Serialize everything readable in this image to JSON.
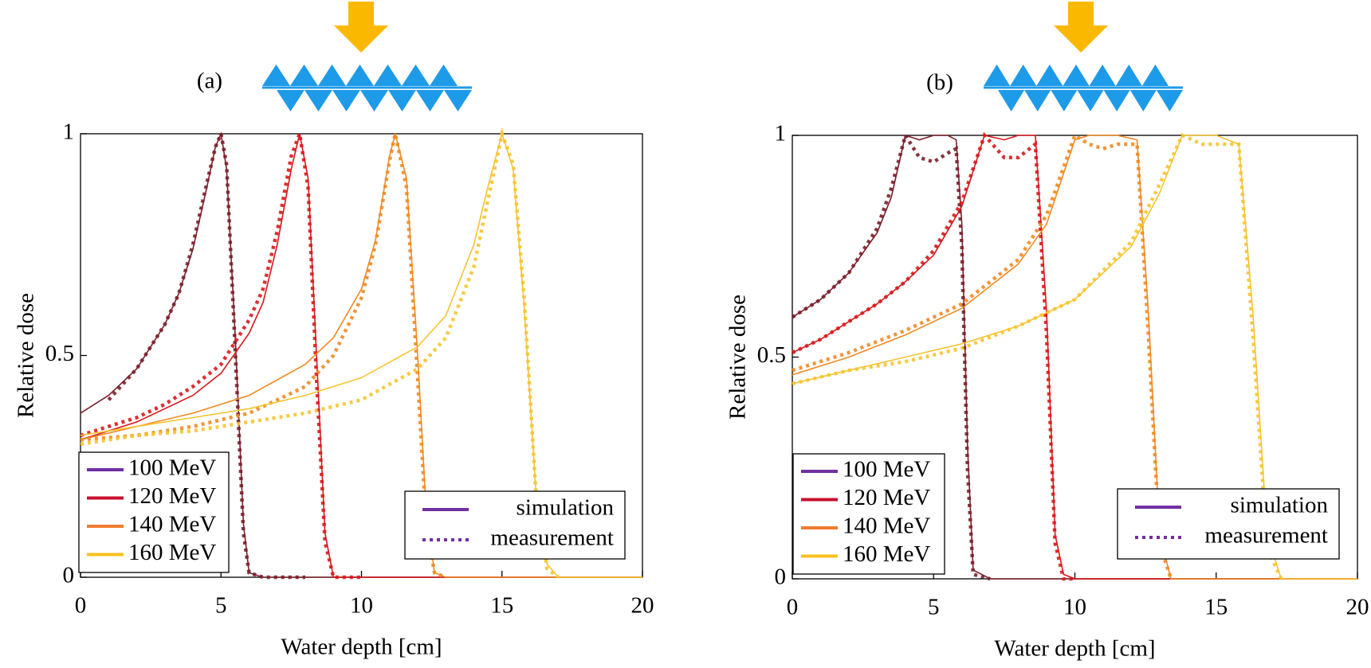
{
  "chart_data": [
    {
      "type": "line",
      "panel_label": "(a)",
      "x_label": "Water depth [cm]",
      "y_label": "Relative dose",
      "xlim": [
        0,
        20
      ],
      "ylim": [
        0,
        1
      ],
      "xticks": [
        0,
        5,
        10,
        15,
        20
      ],
      "yticks": [
        0,
        0.5,
        1
      ],
      "grid": false,
      "legend": "lower left",
      "style_legend": "lower right",
      "style_legend_color": "#7030a0",
      "line_styles": [
        {
          "name": "simulation",
          "dash": "solid"
        },
        {
          "name": "measurement",
          "dash": "dotted"
        }
      ],
      "series": [
        {
          "name": "100 MeV",
          "color": "#7a1f2b",
          "legend_color": "#7030a0",
          "x": [
            0,
            1,
            2,
            3,
            3.5,
            4,
            4.5,
            4.8,
            5,
            5.2,
            5.5,
            5.8,
            6,
            6.5,
            8,
            20
          ],
          "values": [
            0.37,
            0.41,
            0.47,
            0.57,
            0.64,
            0.74,
            0.88,
            0.97,
            1.0,
            0.92,
            0.55,
            0.12,
            0.01,
            0,
            0,
            0
          ],
          "measurement": [
            null,
            0.4,
            0.47,
            0.57,
            0.64,
            0.75,
            0.89,
            0.97,
            1.0,
            0.93,
            0.52,
            0.1,
            0.01,
            0,
            0,
            null
          ]
        },
        {
          "name": "120 MeV",
          "color": "#d7191c",
          "legend_color": "#c8102e",
          "x": [
            0,
            1,
            2,
            3,
            4,
            5,
            6,
            6.5,
            7,
            7.5,
            7.8,
            8.1,
            8.4,
            8.7,
            9,
            10,
            20
          ],
          "values": [
            0.31,
            0.33,
            0.35,
            0.38,
            0.41,
            0.46,
            0.55,
            0.62,
            0.75,
            0.92,
            1.0,
            0.9,
            0.5,
            0.1,
            0,
            0,
            0
          ],
          "measurement": [
            0.32,
            0.34,
            0.36,
            0.39,
            0.43,
            0.48,
            0.58,
            0.65,
            0.78,
            0.95,
            1.0,
            0.88,
            0.45,
            0.08,
            0,
            0,
            null
          ]
        },
        {
          "name": "140 MeV",
          "color": "#f08a24",
          "legend_color": "#f07c30",
          "x": [
            0,
            2,
            4,
            6,
            8,
            9,
            10,
            10.5,
            11,
            11.2,
            11.6,
            12,
            12.3,
            12.6,
            13,
            20
          ],
          "values": [
            0.31,
            0.34,
            0.37,
            0.41,
            0.48,
            0.54,
            0.65,
            0.76,
            0.95,
            1.0,
            0.9,
            0.5,
            0.15,
            0.01,
            0,
            0
          ],
          "measurement": [
            0.31,
            0.32,
            0.34,
            0.37,
            0.43,
            0.5,
            0.63,
            0.75,
            0.94,
            1.0,
            0.88,
            0.45,
            0.12,
            0.01,
            0,
            null
          ]
        },
        {
          "name": "160 MeV",
          "color": "#f5c431",
          "legend_color": "#fcc020",
          "x": [
            0,
            2,
            4,
            6,
            8,
            10,
            12,
            13,
            14,
            14.5,
            15,
            15.4,
            15.8,
            16.2,
            16.6,
            17,
            20
          ],
          "values": [
            0.32,
            0.34,
            0.36,
            0.38,
            0.41,
            0.45,
            0.52,
            0.59,
            0.75,
            0.88,
            1.0,
            0.92,
            0.6,
            0.2,
            0.03,
            0,
            0
          ],
          "measurement": [
            0.3,
            0.32,
            0.33,
            0.35,
            0.37,
            0.4,
            0.47,
            0.54,
            0.7,
            0.85,
            1.0,
            0.93,
            0.62,
            0.2,
            0.02,
            0,
            null
          ]
        }
      ]
    },
    {
      "type": "line",
      "panel_label": "(b)",
      "x_label": "Water depth [cm]",
      "y_label": "Relative dose",
      "xlim": [
        0,
        20
      ],
      "ylim": [
        0,
        1
      ],
      "xticks": [
        0,
        5,
        10,
        15,
        20
      ],
      "yticks": [
        0,
        0.5,
        1
      ],
      "grid": false,
      "legend": "lower left",
      "style_legend": "lower right",
      "style_legend_color": "#7030a0",
      "line_styles": [
        {
          "name": "simulation",
          "dash": "solid"
        },
        {
          "name": "measurement",
          "dash": "dotted"
        }
      ],
      "series": [
        {
          "name": "100 MeV",
          "color": "#7a1f2b",
          "legend_color": "#7030a0",
          "x": [
            0,
            1,
            2,
            3,
            3.5,
            4,
            4.5,
            5,
            5.5,
            5.8,
            6,
            6.2,
            6.4,
            7,
            20
          ],
          "values": [
            0.59,
            0.63,
            0.69,
            0.78,
            0.86,
            1.0,
            0.99,
            1.0,
            1.0,
            0.99,
            0.8,
            0.3,
            0.02,
            0,
            0
          ],
          "measurement": [
            0.59,
            0.63,
            0.69,
            0.79,
            0.88,
            1.0,
            0.95,
            0.94,
            0.96,
            0.97,
            0.75,
            0.25,
            0.01,
            0,
            null
          ]
        },
        {
          "name": "120 MeV",
          "color": "#d7191c",
          "legend_color": "#c8102e",
          "x": [
            0,
            1,
            2,
            3,
            4,
            5,
            6,
            6.8,
            7.5,
            8,
            8.6,
            9,
            9.3,
            9.6,
            10,
            20
          ],
          "values": [
            0.51,
            0.54,
            0.58,
            0.62,
            0.67,
            0.73,
            0.84,
            1.0,
            0.99,
            1.0,
            1.0,
            0.6,
            0.1,
            0.01,
            0,
            0
          ],
          "measurement": [
            0.51,
            0.54,
            0.58,
            0.62,
            0.67,
            0.74,
            0.85,
            1.0,
            0.95,
            0.95,
            0.98,
            0.55,
            0.08,
            0,
            0,
            null
          ]
        },
        {
          "name": "140 MeV",
          "color": "#f08a24",
          "legend_color": "#f07c30",
          "x": [
            0,
            2,
            4,
            6,
            8,
            9,
            10,
            10.5,
            11,
            11.5,
            12.2,
            12.6,
            13,
            13.4,
            20
          ],
          "values": [
            0.46,
            0.5,
            0.55,
            0.61,
            0.71,
            0.8,
            0.99,
            1.0,
            1.0,
            1.0,
            0.99,
            0.6,
            0.1,
            0,
            0
          ],
          "measurement": [
            0.47,
            0.51,
            0.56,
            0.62,
            0.72,
            0.82,
            1.0,
            0.98,
            0.97,
            0.98,
            0.98,
            0.55,
            0.08,
            0,
            null
          ]
        },
        {
          "name": "160 MeV",
          "color": "#f5c431",
          "legend_color": "#fcc020",
          "x": [
            0,
            2,
            4,
            6,
            8,
            10,
            12,
            13,
            13.8,
            14.5,
            15,
            15.8,
            16.3,
            16.8,
            17.3,
            20
          ],
          "values": [
            0.44,
            0.47,
            0.5,
            0.53,
            0.57,
            0.63,
            0.75,
            0.87,
            1.0,
            1.0,
            1.0,
            0.98,
            0.6,
            0.1,
            0,
            0
          ],
          "measurement": [
            0.44,
            0.47,
            0.49,
            0.52,
            0.57,
            0.63,
            0.76,
            0.89,
            1.0,
            0.98,
            0.98,
            0.98,
            0.55,
            0.07,
            0,
            null
          ]
        }
      ]
    }
  ]
}
